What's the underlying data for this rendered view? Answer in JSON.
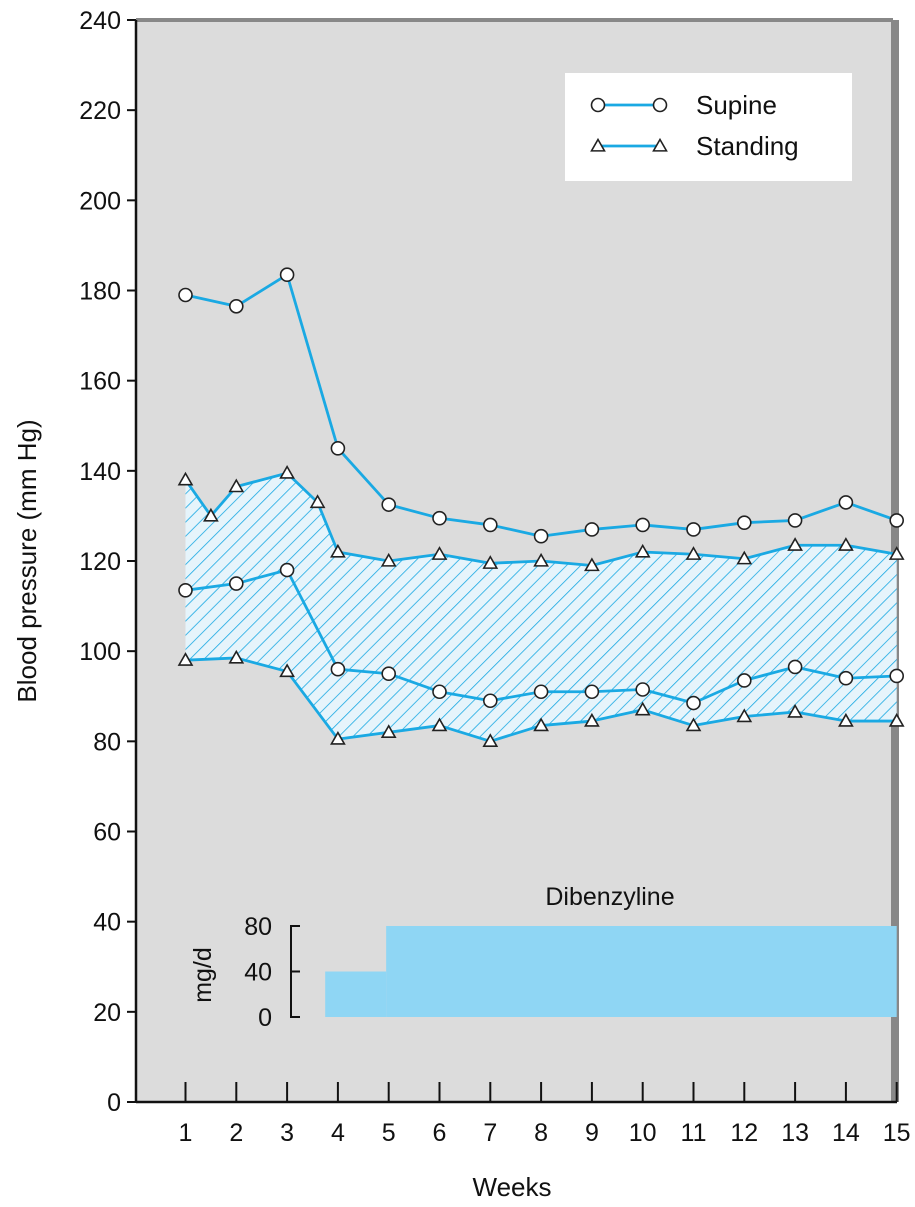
{
  "chart_data": {
    "type": "line",
    "xlabel": "Weeks",
    "ylabel": "Blood pressure (mm Hg)",
    "xlim": [
      0,
      15
    ],
    "ylim": [
      0,
      240
    ],
    "x_ticks": [
      1,
      2,
      3,
      4,
      5,
      6,
      7,
      8,
      9,
      10,
      11,
      12,
      13,
      14,
      15
    ],
    "y_ticks": [
      0,
      20,
      40,
      60,
      80,
      100,
      120,
      140,
      160,
      180,
      200,
      220,
      240
    ],
    "legend_position": "top-right",
    "series": [
      {
        "name": "Supine",
        "marker": "circle",
        "color": "#1aa9e3",
        "segments": [
          {
            "x": [
              1,
              2,
              3,
              4,
              5,
              6,
              7,
              8,
              9,
              10,
              11,
              12,
              13,
              14,
              15
            ],
            "y": [
              179,
              176.5,
              183.5,
              145,
              132.5,
              129.5,
              128,
              125.5,
              127,
              128,
              127,
              128.5,
              129,
              133,
              129
            ]
          },
          {
            "x": [
              1,
              2,
              3,
              4,
              5,
              6,
              7,
              8,
              9,
              10,
              11,
              12,
              13,
              14,
              15
            ],
            "y": [
              113.5,
              115,
              118,
              96,
              95,
              91,
              89,
              91,
              91,
              91.5,
              88.5,
              93.5,
              96.5,
              94,
              94.5
            ]
          }
        ]
      },
      {
        "name": "Standing",
        "marker": "triangle",
        "color": "#1aa9e3",
        "segments": [
          {
            "x": [
              1,
              1.5,
              2,
              3,
              3.6,
              4,
              5,
              6,
              7,
              8,
              9,
              10,
              11,
              12,
              13,
              14,
              15
            ],
            "y": [
              138,
              130,
              136.5,
              139.5,
              133,
              122,
              120,
              121.5,
              119.5,
              120,
              119,
              122,
              121.5,
              120.5,
              123.5,
              123.5,
              121.5
            ]
          },
          {
            "x": [
              1,
              2,
              3,
              4,
              5,
              6,
              7,
              8,
              9,
              10,
              11,
              12,
              13,
              14,
              15
            ],
            "y": [
              98,
              98.5,
              95.5,
              80.5,
              82,
              83.5,
              80,
              83.5,
              84.5,
              87,
              83.5,
              85.5,
              86.5,
              84.5,
              84.5
            ]
          }
        ]
      }
    ],
    "shaded_band": {
      "upper": "Standing segment 1",
      "lower": "Standing segment 2",
      "pattern": "diagonal hatch",
      "color": "#1aa9e3"
    },
    "dose_panel": {
      "title": "Dibenzyline",
      "ylabel": "mg/d",
      "ticks": [
        0,
        40,
        80
      ],
      "color": "#8fd6f4",
      "steps": [
        {
          "from_week": 3.75,
          "to_week": 4.95,
          "dose": 40
        },
        {
          "from_week": 4.95,
          "to_week": 15,
          "dose": 80
        }
      ]
    }
  }
}
